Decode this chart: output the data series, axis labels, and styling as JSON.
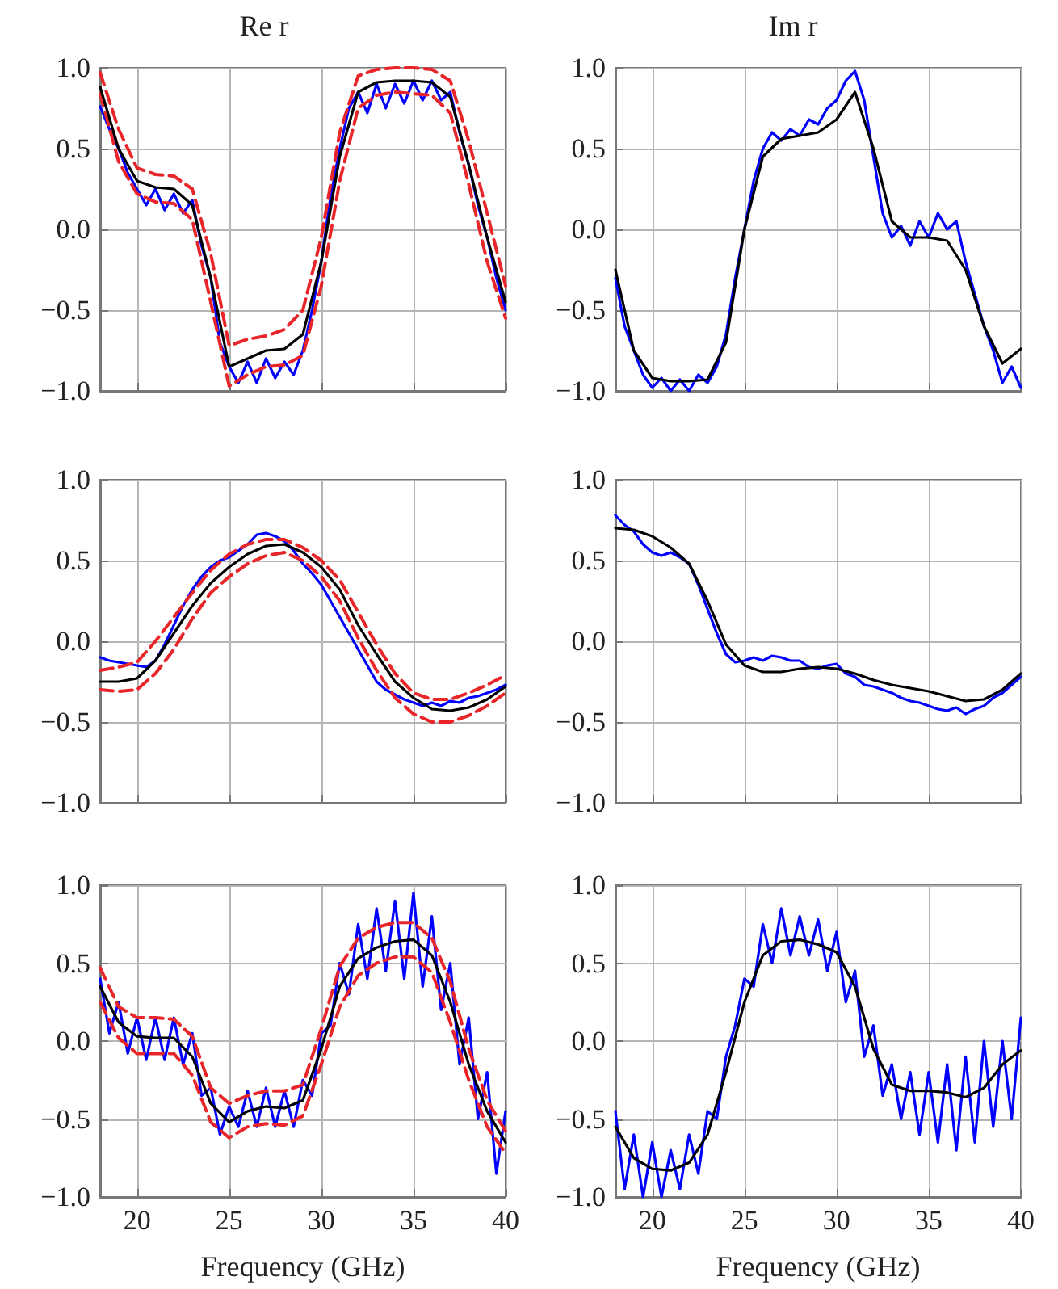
{
  "chart_data": [
    {
      "type": "line",
      "title": "Re r",
      "x": [
        18,
        18.5,
        19,
        19.5,
        20,
        20.5,
        21,
        21.5,
        22,
        22.5,
        23,
        23.5,
        24,
        24.5,
        25,
        25.5,
        26,
        26.5,
        27,
        27.5,
        28,
        28.5,
        29,
        29.5,
        30,
        30.5,
        31,
        31.5,
        32,
        32.5,
        33,
        33.5,
        34,
        34.5,
        35,
        35.5,
        36,
        36.5,
        37,
        37.5,
        38,
        38.5,
        39,
        39.5,
        40
      ],
      "xlim": [
        18,
        40
      ],
      "xticks": [
        20,
        25,
        30,
        35,
        40
      ],
      "ylim": [
        -1,
        1
      ],
      "yticks": [
        {
          "value": -1,
          "label": "−1.0"
        },
        {
          "value": -0.5,
          "label": "−0.5"
        },
        {
          "value": 0,
          "label": "0.0"
        },
        {
          "value": 0.5,
          "label": "0.5"
        },
        {
          "value": 1,
          "label": "1.0"
        }
      ],
      "grid": true,
      "tick_labels": "y",
      "series": [
        {
          "color": "#0000ff",
          "values": [
            0.76,
            0.62,
            0.5,
            0.35,
            0.25,
            0.15,
            0.25,
            0.12,
            0.22,
            0.1,
            0.18,
            -0.1,
            -0.3,
            -0.7,
            -0.85,
            -0.95,
            -0.82,
            -0.95,
            -0.8,
            -0.92,
            -0.82,
            -0.9,
            -0.75,
            -0.5,
            -0.2,
            0.2,
            0.5,
            0.75,
            0.85,
            0.72,
            0.9,
            0.75,
            0.9,
            0.78,
            0.92,
            0.8,
            0.92,
            0.8,
            0.85,
            0.6,
            0.4,
            0.15,
            -0.05,
            -0.3,
            -0.5
          ]
        },
        {
          "color": "#e8262a",
          "line_style": "dashed",
          "x": [
            18,
            19,
            20,
            21,
            22,
            23,
            24,
            25,
            26,
            27,
            28,
            29,
            30,
            31,
            32,
            33,
            34,
            35,
            36,
            37,
            38,
            39,
            40
          ],
          "values": [
            0.97,
            0.62,
            0.38,
            0.34,
            0.33,
            0.25,
            -0.15,
            -0.72,
            -0.68,
            -0.66,
            -0.62,
            -0.5,
            -0.05,
            0.6,
            0.95,
            0.99,
            1.0,
            1.0,
            0.99,
            0.92,
            0.55,
            0.1,
            -0.35
          ]
        },
        {
          "color": "#e8262a",
          "line_style": "dashed",
          "x": [
            18,
            19,
            20,
            21,
            22,
            23,
            24,
            25,
            26,
            27,
            28,
            29,
            30,
            31,
            32,
            33,
            34,
            35,
            36,
            37,
            38,
            39,
            40
          ],
          "values": [
            0.84,
            0.42,
            0.22,
            0.17,
            0.16,
            0.06,
            -0.45,
            -0.97,
            -0.9,
            -0.85,
            -0.84,
            -0.78,
            -0.35,
            0.3,
            0.75,
            0.83,
            0.85,
            0.84,
            0.83,
            0.72,
            0.28,
            -0.2,
            -0.55
          ]
        },
        {
          "color": "#000000",
          "x": [
            18,
            19,
            20,
            21,
            22,
            23,
            24,
            25,
            26,
            27,
            28,
            29,
            30,
            31,
            32,
            33,
            34,
            35,
            36,
            37,
            38,
            39,
            40
          ],
          "values": [
            0.88,
            0.5,
            0.3,
            0.26,
            0.25,
            0.15,
            -0.3,
            -0.85,
            -0.8,
            -0.75,
            -0.74,
            -0.65,
            -0.2,
            0.45,
            0.85,
            0.91,
            0.92,
            0.92,
            0.91,
            0.82,
            0.4,
            -0.05,
            -0.45
          ]
        }
      ]
    },
    {
      "type": "line",
      "title": "Im r",
      "x": [
        18,
        18.5,
        19,
        19.5,
        20,
        20.5,
        21,
        21.5,
        22,
        22.5,
        23,
        23.5,
        24,
        24.5,
        25,
        25.5,
        26,
        26.5,
        27,
        27.5,
        28,
        28.5,
        29,
        29.5,
        30,
        30.5,
        31,
        31.5,
        32,
        32.5,
        33,
        33.5,
        34,
        34.5,
        35,
        35.5,
        36,
        36.5,
        37,
        37.5,
        38,
        38.5,
        39,
        39.5,
        40
      ],
      "xlim": [
        18,
        40
      ],
      "xticks": [
        20,
        25,
        30,
        35,
        40
      ],
      "ylim": [
        -1,
        1
      ],
      "yticks": [
        {
          "value": -1,
          "label": "−1.0"
        },
        {
          "value": -0.5,
          "label": "−0.5"
        },
        {
          "value": 0,
          "label": "0.0"
        },
        {
          "value": 0.5,
          "label": "0.5"
        },
        {
          "value": 1,
          "label": "1.0"
        }
      ],
      "grid": true,
      "tick_labels": "y",
      "series": [
        {
          "color": "#0000ff",
          "values": [
            -0.3,
            -0.6,
            -0.75,
            -0.9,
            -0.98,
            -0.92,
            -1.0,
            -0.93,
            -1.0,
            -0.9,
            -0.95,
            -0.85,
            -0.65,
            -0.3,
            0.0,
            0.3,
            0.5,
            0.6,
            0.55,
            0.62,
            0.58,
            0.68,
            0.65,
            0.75,
            0.8,
            0.92,
            0.98,
            0.8,
            0.45,
            0.1,
            -0.05,
            0.02,
            -0.1,
            0.05,
            -0.05,
            0.1,
            0.0,
            0.05,
            -0.2,
            -0.4,
            -0.6,
            -0.75,
            -0.95,
            -0.85,
            -0.98
          ]
        },
        {
          "color": "#000000",
          "x": [
            18,
            19,
            20,
            21,
            22,
            23,
            24,
            25,
            26,
            27,
            28,
            29,
            30,
            31,
            32,
            33,
            34,
            35,
            36,
            37,
            38,
            39,
            40
          ],
          "values": [
            -0.25,
            -0.75,
            -0.92,
            -0.94,
            -0.94,
            -0.93,
            -0.7,
            0.0,
            0.45,
            0.56,
            0.58,
            0.6,
            0.68,
            0.85,
            0.5,
            0.05,
            -0.05,
            -0.05,
            -0.07,
            -0.25,
            -0.6,
            -0.83,
            -0.74
          ]
        }
      ]
    },
    {
      "type": "line",
      "x": [
        18,
        18.5,
        19,
        19.5,
        20,
        20.5,
        21,
        21.5,
        22,
        22.5,
        23,
        23.5,
        24,
        24.5,
        25,
        25.5,
        26,
        26.5,
        27,
        27.5,
        28,
        28.5,
        29,
        29.5,
        30,
        30.5,
        31,
        31.5,
        32,
        32.5,
        33,
        33.5,
        34,
        34.5,
        35,
        35.5,
        36,
        36.5,
        37,
        37.5,
        38,
        38.5,
        39,
        39.5,
        40
      ],
      "xlim": [
        18,
        40
      ],
      "xticks": [
        20,
        25,
        30,
        35,
        40
      ],
      "ylim": [
        -1,
        1
      ],
      "yticks": [
        {
          "value": -1,
          "label": "−1.0"
        },
        {
          "value": -0.5,
          "label": "−0.5"
        },
        {
          "value": 0,
          "label": "0.0"
        },
        {
          "value": 0.5,
          "label": "0.5"
        },
        {
          "value": 1,
          "label": "1.0"
        }
      ],
      "grid": true,
      "tick_labels": "y",
      "series": [
        {
          "color": "#0000ff",
          "values": [
            -0.1,
            -0.12,
            -0.13,
            -0.14,
            -0.15,
            -0.16,
            -0.12,
            -0.02,
            0.1,
            0.22,
            0.32,
            0.4,
            0.46,
            0.5,
            0.52,
            0.56,
            0.6,
            0.66,
            0.67,
            0.65,
            0.62,
            0.56,
            0.48,
            0.42,
            0.35,
            0.25,
            0.15,
            0.05,
            -0.05,
            -0.15,
            -0.25,
            -0.3,
            -0.33,
            -0.36,
            -0.38,
            -0.4,
            -0.38,
            -0.4,
            -0.37,
            -0.38,
            -0.35,
            -0.34,
            -0.32,
            -0.3,
            -0.27
          ]
        },
        {
          "color": "#e8262a",
          "line_style": "dashed",
          "x": [
            18,
            19,
            20,
            21,
            22,
            23,
            24,
            25,
            26,
            27,
            28,
            29,
            30,
            31,
            32,
            33,
            34,
            35,
            36,
            37,
            38,
            39,
            40
          ],
          "values": [
            -0.18,
            -0.16,
            -0.13,
            0.0,
            0.15,
            0.3,
            0.44,
            0.54,
            0.6,
            0.63,
            0.63,
            0.58,
            0.5,
            0.38,
            0.18,
            -0.02,
            -0.2,
            -0.32,
            -0.36,
            -0.36,
            -0.32,
            -0.27,
            -0.21
          ]
        },
        {
          "color": "#e8262a",
          "line_style": "dashed",
          "x": [
            18,
            19,
            20,
            21,
            22,
            23,
            24,
            25,
            26,
            27,
            28,
            29,
            30,
            31,
            32,
            33,
            34,
            35,
            36,
            37,
            38,
            39,
            40
          ],
          "values": [
            -0.3,
            -0.31,
            -0.3,
            -0.2,
            -0.05,
            0.14,
            0.3,
            0.4,
            0.48,
            0.53,
            0.55,
            0.5,
            0.4,
            0.25,
            0.02,
            -0.18,
            -0.35,
            -0.45,
            -0.5,
            -0.5,
            -0.46,
            -0.4,
            -0.32
          ]
        },
        {
          "color": "#000000",
          "x": [
            18,
            19,
            20,
            21,
            22,
            23,
            24,
            25,
            26,
            27,
            28,
            29,
            30,
            31,
            32,
            33,
            34,
            35,
            36,
            37,
            38,
            39,
            40
          ],
          "values": [
            -0.25,
            -0.25,
            -0.23,
            -0.12,
            0.05,
            0.22,
            0.36,
            0.46,
            0.54,
            0.59,
            0.6,
            0.55,
            0.46,
            0.32,
            0.1,
            -0.08,
            -0.25,
            -0.35,
            -0.42,
            -0.43,
            -0.41,
            -0.36,
            -0.28
          ]
        }
      ]
    },
    {
      "type": "line",
      "x": [
        18,
        18.5,
        19,
        19.5,
        20,
        20.5,
        21,
        21.5,
        22,
        22.5,
        23,
        23.5,
        24,
        24.5,
        25,
        25.5,
        26,
        26.5,
        27,
        27.5,
        28,
        28.5,
        29,
        29.5,
        30,
        30.5,
        31,
        31.5,
        32,
        32.5,
        33,
        33.5,
        34,
        34.5,
        35,
        35.5,
        36,
        36.5,
        37,
        37.5,
        38,
        38.5,
        39,
        39.5,
        40
      ],
      "xlim": [
        18,
        40
      ],
      "xticks": [
        20,
        25,
        30,
        35,
        40
      ],
      "ylim": [
        -1,
        1
      ],
      "yticks": [
        {
          "value": -1,
          "label": "−1.0"
        },
        {
          "value": -0.5,
          "label": "−0.5"
        },
        {
          "value": 0,
          "label": "0.0"
        },
        {
          "value": 0.5,
          "label": "0.5"
        },
        {
          "value": 1,
          "label": "1.0"
        }
      ],
      "grid": true,
      "tick_labels": "y",
      "series": [
        {
          "color": "#0000ff",
          "values": [
            0.78,
            0.72,
            0.68,
            0.6,
            0.55,
            0.53,
            0.55,
            0.52,
            0.48,
            0.35,
            0.2,
            0.05,
            -0.08,
            -0.13,
            -0.12,
            -0.1,
            -0.12,
            -0.09,
            -0.1,
            -0.12,
            -0.12,
            -0.16,
            -0.17,
            -0.15,
            -0.14,
            -0.2,
            -0.22,
            -0.27,
            -0.28,
            -0.3,
            -0.32,
            -0.35,
            -0.37,
            -0.38,
            -0.4,
            -0.42,
            -0.43,
            -0.41,
            -0.45,
            -0.42,
            -0.4,
            -0.35,
            -0.32,
            -0.27,
            -0.22
          ]
        },
        {
          "color": "#000000",
          "x": [
            18,
            19,
            20,
            21,
            22,
            23,
            24,
            25,
            26,
            27,
            28,
            29,
            30,
            31,
            32,
            33,
            34,
            35,
            36,
            37,
            38,
            39,
            40
          ],
          "values": [
            0.7,
            0.69,
            0.65,
            0.58,
            0.48,
            0.25,
            -0.02,
            -0.15,
            -0.19,
            -0.19,
            -0.17,
            -0.16,
            -0.17,
            -0.2,
            -0.24,
            -0.27,
            -0.29,
            -0.31,
            -0.34,
            -0.37,
            -0.36,
            -0.3,
            -0.2
          ]
        }
      ]
    },
    {
      "type": "line",
      "xlabel": "Frequency (GHz)",
      "x": [
        18,
        18.5,
        19,
        19.5,
        20,
        20.5,
        21,
        21.5,
        22,
        22.5,
        23,
        23.5,
        24,
        24.5,
        25,
        25.5,
        26,
        26.5,
        27,
        27.5,
        28,
        28.5,
        29,
        29.5,
        30,
        30.5,
        31,
        31.5,
        32,
        32.5,
        33,
        33.5,
        34,
        34.5,
        35,
        35.5,
        36,
        36.5,
        37,
        37.5,
        38,
        38.5,
        39,
        39.5,
        40
      ],
      "xlim": [
        18,
        40
      ],
      "xticks": [
        20,
        25,
        30,
        35,
        40
      ],
      "ylim": [
        -1,
        1
      ],
      "yticks": [
        {
          "value": -1,
          "label": "−1.0"
        },
        {
          "value": -0.5,
          "label": "−0.5"
        },
        {
          "value": 0,
          "label": "0.0"
        },
        {
          "value": 0.5,
          "label": "0.5"
        },
        {
          "value": 1,
          "label": "1.0"
        }
      ],
      "grid": true,
      "series": [
        {
          "color": "#0000ff",
          "values": [
            0.4,
            0.05,
            0.25,
            -0.08,
            0.15,
            -0.12,
            0.15,
            -0.12,
            0.15,
            -0.15,
            0.05,
            -0.35,
            -0.3,
            -0.6,
            -0.42,
            -0.55,
            -0.32,
            -0.55,
            -0.3,
            -0.55,
            -0.32,
            -0.55,
            -0.25,
            -0.35,
            0.05,
            0.1,
            0.5,
            0.3,
            0.75,
            0.4,
            0.85,
            0.45,
            0.9,
            0.4,
            0.95,
            0.35,
            0.8,
            0.2,
            0.5,
            -0.15,
            0.15,
            -0.5,
            -0.2,
            -0.85,
            -0.45
          ]
        },
        {
          "color": "#e8262a",
          "line_style": "dashed",
          "x": [
            18,
            19,
            20,
            21,
            22,
            23,
            24,
            25,
            26,
            27,
            28,
            29,
            30,
            31,
            32,
            33,
            34,
            35,
            36,
            37,
            38,
            39,
            40
          ],
          "values": [
            0.47,
            0.22,
            0.15,
            0.15,
            0.14,
            0.03,
            -0.3,
            -0.4,
            -0.35,
            -0.32,
            -0.32,
            -0.28,
            0.08,
            0.48,
            0.66,
            0.73,
            0.76,
            0.76,
            0.66,
            0.38,
            -0.05,
            -0.38,
            -0.58
          ]
        },
        {
          "color": "#e8262a",
          "line_style": "dashed",
          "x": [
            18,
            19,
            20,
            21,
            22,
            23,
            24,
            25,
            26,
            27,
            28,
            29,
            30,
            31,
            32,
            33,
            34,
            35,
            36,
            37,
            38,
            39,
            40
          ],
          "values": [
            0.25,
            0.02,
            -0.08,
            -0.08,
            -0.08,
            -0.22,
            -0.52,
            -0.62,
            -0.55,
            -0.53,
            -0.54,
            -0.48,
            -0.15,
            0.22,
            0.42,
            0.5,
            0.54,
            0.54,
            0.44,
            0.12,
            -0.25,
            -0.55,
            -0.72
          ]
        },
        {
          "color": "#000000",
          "x": [
            18,
            19,
            20,
            21,
            22,
            23,
            24,
            25,
            26,
            27,
            28,
            29,
            30,
            31,
            32,
            33,
            34,
            35,
            36,
            37,
            38,
            39,
            40
          ],
          "values": [
            0.35,
            0.12,
            0.03,
            0.02,
            0.02,
            -0.1,
            -0.4,
            -0.52,
            -0.45,
            -0.42,
            -0.43,
            -0.38,
            -0.05,
            0.35,
            0.53,
            0.6,
            0.64,
            0.65,
            0.55,
            0.25,
            -0.15,
            -0.45,
            -0.65
          ]
        }
      ]
    },
    {
      "type": "line",
      "xlabel": "Frequency (GHz)",
      "x": [
        18,
        18.5,
        19,
        19.5,
        20,
        20.5,
        21,
        21.5,
        22,
        22.5,
        23,
        23.5,
        24,
        24.5,
        25,
        25.5,
        26,
        26.5,
        27,
        27.5,
        28,
        28.5,
        29,
        29.5,
        30,
        30.5,
        31,
        31.5,
        32,
        32.5,
        33,
        33.5,
        34,
        34.5,
        35,
        35.5,
        36,
        36.5,
        37,
        37.5,
        38,
        38.5,
        39,
        39.5,
        40
      ],
      "xlim": [
        18,
        40
      ],
      "xticks": [
        20,
        25,
        30,
        35,
        40
      ],
      "ylim": [
        -1,
        1
      ],
      "yticks": [
        {
          "value": -1,
          "label": "−1.0"
        },
        {
          "value": -0.5,
          "label": "−0.5"
        },
        {
          "value": 0,
          "label": "0.0"
        },
        {
          "value": 0.5,
          "label": "0.5"
        },
        {
          "value": 1,
          "label": "1.0"
        }
      ],
      "grid": true,
      "series": [
        {
          "color": "#0000ff",
          "values": [
            -0.45,
            -0.95,
            -0.6,
            -1.0,
            -0.65,
            -1.0,
            -0.7,
            -0.95,
            -0.6,
            -0.85,
            -0.45,
            -0.5,
            -0.1,
            0.1,
            0.4,
            0.35,
            0.75,
            0.5,
            0.85,
            0.55,
            0.8,
            0.55,
            0.78,
            0.45,
            0.7,
            0.25,
            0.45,
            -0.1,
            0.1,
            -0.35,
            -0.15,
            -0.5,
            -0.2,
            -0.6,
            -0.2,
            -0.65,
            -0.15,
            -0.7,
            -0.1,
            -0.65,
            0.0,
            -0.55,
            0.0,
            -0.5,
            0.15
          ]
        },
        {
          "color": "#000000",
          "x": [
            18,
            19,
            20,
            21,
            22,
            23,
            24,
            25,
            26,
            27,
            28,
            29,
            30,
            31,
            32,
            33,
            34,
            35,
            36,
            37,
            38,
            39,
            40
          ],
          "values": [
            -0.55,
            -0.75,
            -0.82,
            -0.83,
            -0.78,
            -0.6,
            -0.2,
            0.25,
            0.55,
            0.64,
            0.65,
            0.62,
            0.57,
            0.35,
            -0.05,
            -0.28,
            -0.32,
            -0.32,
            -0.33,
            -0.36,
            -0.3,
            -0.15,
            -0.06
          ]
        }
      ]
    }
  ]
}
